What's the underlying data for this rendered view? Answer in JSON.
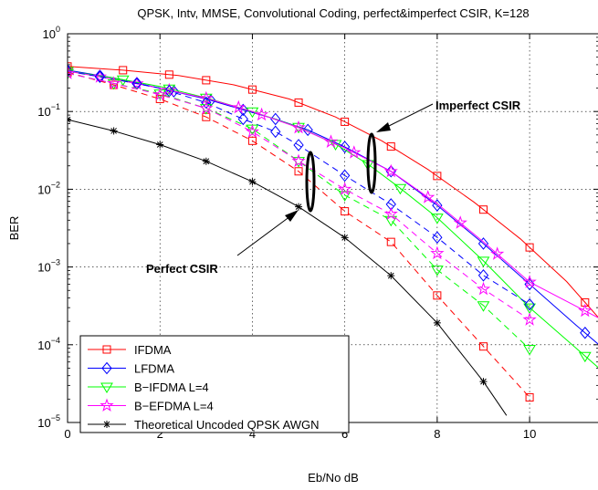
{
  "chart_data": {
    "type": "line",
    "title": "QPSK, Intv, MMSE, Convolutional Coding, perfect&imperfect CSIR, K=128",
    "xlabel": "Eb/No  dB",
    "ylabel": "BER",
    "xlim": [
      0,
      11.5
    ],
    "ylim": [
      1e-05,
      1
    ],
    "yscale": "log",
    "grid": true,
    "legend_position": "bottom-left",
    "x_ticks": [
      "0",
      "2",
      "4",
      "6",
      "8",
      "10"
    ],
    "y_ticks": [
      {
        "base": "10",
        "exp": "0"
      },
      {
        "base": "10",
        "exp": "−1"
      },
      {
        "base": "10",
        "exp": "−2"
      },
      {
        "base": "10",
        "exp": "−3"
      },
      {
        "base": "10",
        "exp": "−4"
      },
      {
        "base": "10",
        "exp": "−5"
      }
    ],
    "legend": [
      {
        "label": "IFDMA",
        "color": "#ff0000",
        "marker": "square"
      },
      {
        "label": "LFDMA",
        "color": "#0000ff",
        "marker": "diamond"
      },
      {
        "label": "B−IFDMA L=4",
        "color": "#00ff00",
        "marker": "triangle-down"
      },
      {
        "label": "B−EFDMA L=4",
        "color": "#ff00ff",
        "marker": "pentagram"
      },
      {
        "label": "Theoretical Uncoded QPSK AWGN",
        "color": "#000000",
        "marker": "asterisk"
      }
    ],
    "series": [
      {
        "group": "IFDMA",
        "csir": "imperfect",
        "color": "#ff0000",
        "marker": "square",
        "dash": "solid",
        "x": [
          0,
          1.2,
          2.4,
          3.6,
          4.8,
          5.8,
          6.8,
          7.8,
          8.8,
          9.8,
          10.8,
          11.5
        ],
        "y": [
          0.38,
          0.34,
          0.29,
          0.22,
          0.145,
          0.085,
          0.042,
          0.018,
          0.0068,
          0.0023,
          0.00065,
          0.00022
        ],
        "marker_x": [
          0,
          1.2,
          2.2,
          3.0,
          4.0,
          5.0,
          6.0,
          7.0,
          8.0,
          9.0,
          10.0,
          11.2
        ]
      },
      {
        "group": "LFDMA",
        "csir": "imperfect",
        "color": "#0000ff",
        "marker": "diamond",
        "dash": "solid",
        "x": [
          0,
          1,
          2,
          3,
          3.8,
          4.5,
          5.2,
          6,
          7,
          8,
          9,
          10,
          11,
          11.5
        ],
        "y": [
          0.34,
          0.27,
          0.2,
          0.145,
          0.105,
          0.08,
          0.058,
          0.035,
          0.017,
          0.0062,
          0.002,
          0.0006,
          0.00018,
          0.0001
        ],
        "marker_x": [
          0,
          0.7,
          1.5,
          2.3,
          3.1,
          3.8,
          4.5,
          5.2,
          6.0,
          7.0,
          8.0,
          9.0,
          10.0,
          11.2
        ]
      },
      {
        "group": "B−IFDMA L=4",
        "csir": "imperfect",
        "color": "#00ff00",
        "marker": "triangle-down",
        "dash": "solid",
        "x": [
          0,
          1,
          2,
          3,
          4,
          5,
          5.8,
          6.5,
          7.2,
          8,
          9,
          10,
          11.5
        ],
        "y": [
          0.33,
          0.27,
          0.21,
          0.15,
          0.1,
          0.063,
          0.038,
          0.021,
          0.0103,
          0.0043,
          0.0012,
          0.0003,
          5e-05
        ],
        "marker_x": [
          0,
          1.2,
          2.2,
          3.0,
          4.0,
          5.0,
          5.8,
          6.5,
          7.2,
          8.0,
          9.0,
          10.0,
          11.2
        ]
      },
      {
        "group": "B−EFDMA L=4",
        "csir": "imperfect",
        "color": "#ff00ff",
        "marker": "pentagram",
        "dash": "solid",
        "x": [
          0,
          1,
          2,
          3,
          4,
          5,
          6,
          7,
          8,
          9,
          10,
          11.5
        ],
        "y": [
          0.33,
          0.26,
          0.2,
          0.148,
          0.1,
          0.062,
          0.034,
          0.017,
          0.0065,
          0.0021,
          0.00064,
          0.00022
        ],
        "marker_x": [
          0,
          0.7,
          1.5,
          2.2,
          3.0,
          3.7,
          4.2,
          5.0,
          5.7,
          6.2,
          7.0,
          7.8,
          8.5,
          9.3,
          10.0,
          11.2
        ]
      },
      {
        "group": "IFDMA",
        "csir": "perfect",
        "color": "#ff0000",
        "marker": "square",
        "dash": "dashed",
        "x": [
          0,
          1,
          2,
          3,
          4,
          5,
          6,
          7,
          8,
          9,
          10
        ],
        "y": [
          0.32,
          0.22,
          0.145,
          0.085,
          0.042,
          0.017,
          0.0052,
          0.0021,
          0.00043,
          9.5e-05,
          2.1e-05
        ],
        "marker_x": [
          0,
          1.0,
          2.0,
          3.0,
          4.0,
          5.0,
          6.0,
          7.0,
          8.0,
          9.0,
          10.0
        ]
      },
      {
        "group": "LFDMA",
        "csir": "perfect",
        "color": "#0000ff",
        "marker": "diamond",
        "dash": "dashed",
        "x": [
          0,
          1,
          2,
          3,
          3.8,
          4.5,
          5,
          6,
          7,
          8,
          9,
          10
        ],
        "y": [
          0.33,
          0.26,
          0.2,
          0.13,
          0.08,
          0.055,
          0.037,
          0.015,
          0.0064,
          0.0024,
          0.00078,
          0.00033
        ],
        "marker_x": [
          0,
          0.7,
          1.5,
          2.2,
          3.0,
          3.8,
          4.5,
          5.0,
          6.0,
          7.0,
          8.0,
          9.0,
          10.0
        ]
      },
      {
        "group": "B−IFDMA L=4",
        "csir": "perfect",
        "color": "#00ff00",
        "marker": "triangle-down",
        "dash": "dashed",
        "x": [
          0,
          1,
          2,
          3,
          4,
          5,
          6,
          7,
          8,
          9,
          10
        ],
        "y": [
          0.31,
          0.23,
          0.17,
          0.11,
          0.06,
          0.023,
          0.0084,
          0.004,
          0.00092,
          0.00032,
          8.8e-05
        ],
        "marker_x": [
          0,
          1.0,
          2.0,
          3.0,
          4.0,
          5.0,
          6.0,
          7.0,
          8.0,
          9.0,
          10.0
        ]
      },
      {
        "group": "B−EFDMA L=4",
        "csir": "perfect",
        "color": "#ff00ff",
        "marker": "pentagram",
        "dash": "dashed",
        "x": [
          0,
          1,
          2,
          3,
          4,
          5,
          6,
          7,
          8,
          9,
          10
        ],
        "y": [
          0.31,
          0.23,
          0.165,
          0.11,
          0.055,
          0.023,
          0.01,
          0.0048,
          0.0015,
          0.00052,
          0.00021
        ],
        "marker_x": [
          0,
          1.0,
          2.0,
          3.0,
          4.0,
          5.0,
          6.0,
          7.0,
          8.0,
          9.0,
          10.0
        ]
      },
      {
        "group": "Theoretical Uncoded QPSK AWGN",
        "csir": "theory",
        "color": "#000000",
        "marker": "asterisk",
        "dash": "solid",
        "x": [
          0,
          1,
          2,
          3,
          4,
          5,
          6,
          7,
          8,
          9,
          9.5
        ],
        "y": [
          0.0786,
          0.0563,
          0.0375,
          0.0229,
          0.0125,
          0.00595,
          0.00239,
          0.000773,
          0.000191,
          3.36e-05,
          1.23e-05
        ],
        "marker_x": [
          0,
          1.0,
          2.0,
          3.0,
          4.0,
          5.0,
          6.0,
          7.0,
          8.0,
          9.0
        ]
      }
    ],
    "annotations": [
      {
        "text": "Imperfect CSIR",
        "points_to": {
          "x": 6.75,
          "y": 0.03
        }
      },
      {
        "text": "Perfect CSIR",
        "points_to": {
          "x": 5.3,
          "y": 0.006
        }
      }
    ]
  }
}
